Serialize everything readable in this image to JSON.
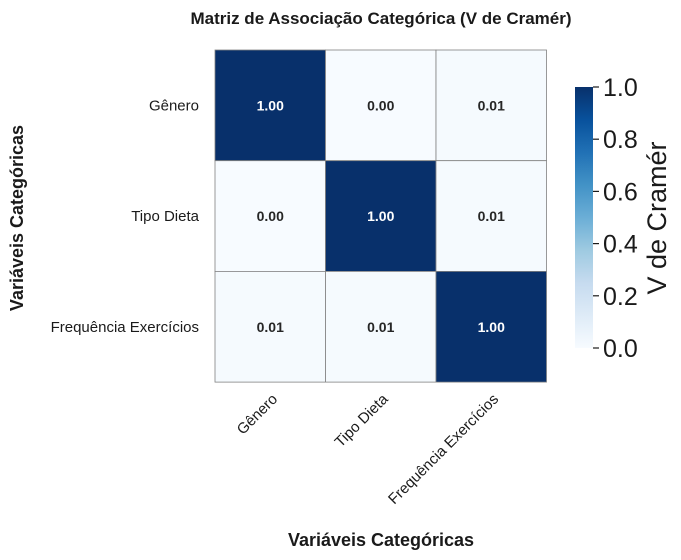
{
  "chart_data": {
    "type": "heatmap",
    "title": "Matriz de Associação Categórica (V de Cramér)",
    "xlabel": "Variáveis Categóricas",
    "ylabel": "Variáveis Categóricas",
    "x_categories": [
      "Gênero",
      "Tipo Dieta",
      "Frequência Exercícios"
    ],
    "y_categories": [
      "Gênero",
      "Tipo Dieta",
      "Frequência Exercícios"
    ],
    "values": [
      [
        1.0,
        0.0,
        0.01
      ],
      [
        0.0,
        1.0,
        0.01
      ],
      [
        0.01,
        0.01,
        1.0
      ]
    ],
    "value_labels": [
      [
        "1.00",
        "0.00",
        "0.01"
      ],
      [
        "0.00",
        "1.00",
        "0.01"
      ],
      [
        "0.01",
        "0.01",
        "1.00"
      ]
    ],
    "colormap": "Blues",
    "colors": {
      "low": "#f7fbff",
      "high": "#08306b",
      "grid": "#808080"
    },
    "colorbar": {
      "label": "V de Cramér",
      "range": [
        0,
        1
      ],
      "ticks": [
        "0.0",
        "0.2",
        "0.4",
        "0.6",
        "0.8",
        "1.0"
      ]
    }
  }
}
